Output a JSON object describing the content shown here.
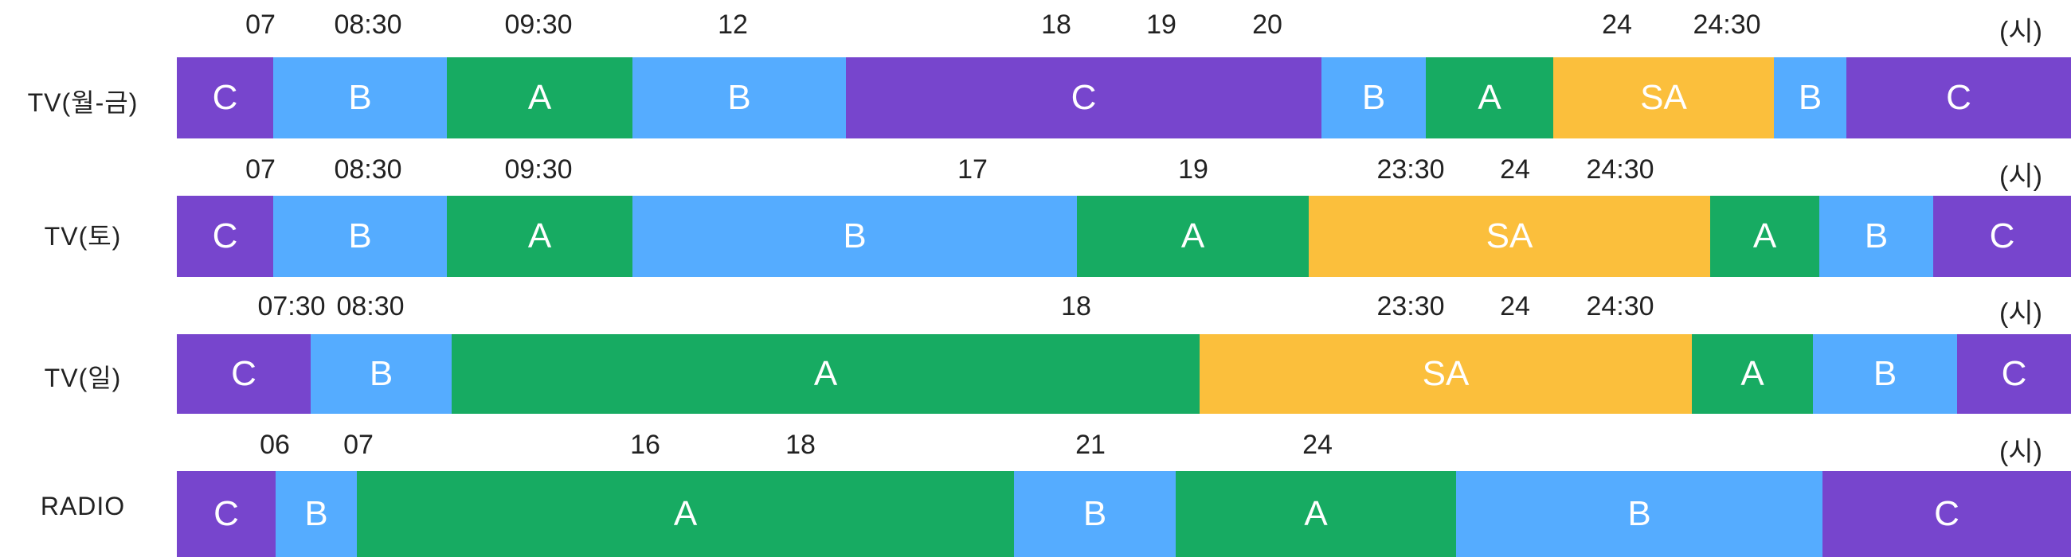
{
  "colors": {
    "C": "#7745cd",
    "B": "#55acff",
    "A": "#17ab62",
    "SA": "#fbbf3c"
  },
  "rows": [
    {
      "label": "TV(월-금)",
      "unit": "(시)",
      "ticks": [
        {
          "text": "07",
          "h": 7
        },
        {
          "text": "08:30",
          "h": 8.5
        },
        {
          "text": "09:30",
          "h": 9.5
        },
        {
          "text": "12",
          "h": 12
        },
        {
          "text": "18",
          "h": 18
        },
        {
          "text": "19",
          "h": 19
        },
        {
          "text": "20",
          "h": 20
        },
        {
          "text": "24",
          "h": 24
        },
        {
          "text": "24:30",
          "h": 24.5
        }
      ],
      "segments": [
        {
          "grade": "C",
          "start": 6,
          "end": 7
        },
        {
          "grade": "B",
          "start": 7,
          "end": 8.5
        },
        {
          "grade": "A",
          "start": 8.5,
          "end": 9.5
        },
        {
          "grade": "B",
          "start": 9.5,
          "end": 12
        },
        {
          "grade": "C",
          "start": 12,
          "end": 18
        },
        {
          "grade": "B",
          "start": 18,
          "end": 19
        },
        {
          "grade": "A",
          "start": 19,
          "end": 20
        },
        {
          "grade": "SA",
          "start": 20,
          "end": 24
        },
        {
          "grade": "B",
          "start": 24,
          "end": 24.5
        },
        {
          "grade": "C",
          "start": 24.5,
          "end": 26
        }
      ]
    },
    {
      "label": "TV(토)",
      "unit": "(시)",
      "ticks": [
        {
          "text": "07",
          "h": 7
        },
        {
          "text": "08:30",
          "h": 8.5
        },
        {
          "text": "09:30",
          "h": 9.5
        },
        {
          "text": "17",
          "h": 17
        },
        {
          "text": "19",
          "h": 19
        },
        {
          "text": "23:30",
          "h": 23.5
        },
        {
          "text": "24",
          "h": 24
        },
        {
          "text": "24:30",
          "h": 24.5
        }
      ],
      "segments": [
        {
          "grade": "C",
          "start": 6,
          "end": 7
        },
        {
          "grade": "B",
          "start": 7,
          "end": 8.5
        },
        {
          "grade": "A",
          "start": 8.5,
          "end": 9.5
        },
        {
          "grade": "B",
          "start": 9.5,
          "end": 17
        },
        {
          "grade": "A",
          "start": 17,
          "end": 19
        },
        {
          "grade": "SA",
          "start": 19,
          "end": 23.5
        },
        {
          "grade": "A",
          "start": 23.5,
          "end": 24
        },
        {
          "grade": "B",
          "start": 24,
          "end": 24.5
        },
        {
          "grade": "C",
          "start": 24.5,
          "end": 26
        }
      ]
    },
    {
      "label": "TV(일)",
      "unit": "(시)",
      "ticks": [
        {
          "text": "07:30",
          "h": 7.5
        },
        {
          "text": "08:30",
          "h": 8.5
        },
        {
          "text": "18",
          "h": 18
        },
        {
          "text": "23:30",
          "h": 23.5
        },
        {
          "text": "24",
          "h": 24
        },
        {
          "text": "24:30",
          "h": 24.5
        }
      ],
      "segments": [
        {
          "grade": "C",
          "start": 6,
          "end": 7.5
        },
        {
          "grade": "B",
          "start": 7.5,
          "end": 8.5
        },
        {
          "grade": "A",
          "start": 8.5,
          "end": 18
        },
        {
          "grade": "SA",
          "start": 18,
          "end": 23
        },
        {
          "grade": "A",
          "start": 23,
          "end": 23.5
        },
        {
          "grade": "B",
          "start": 23.5,
          "end": 24.5
        },
        {
          "grade": "C",
          "start": 24.5,
          "end": 26
        }
      ]
    },
    {
      "label": "RADIO",
      "unit": "(시)",
      "ticks": [
        {
          "text": "06",
          "h": 6
        },
        {
          "text": "07",
          "h": 7
        },
        {
          "text": "16",
          "h": 16
        },
        {
          "text": "18",
          "h": 18
        },
        {
          "text": "21",
          "h": 21
        },
        {
          "text": "24",
          "h": 24
        }
      ],
      "segments": [
        {
          "grade": "C",
          "start": 5,
          "end": 6
        },
        {
          "grade": "B",
          "start": 6,
          "end": 7
        },
        {
          "grade": "A",
          "start": 7,
          "end": 16
        },
        {
          "grade": "B",
          "start": 16,
          "end": 18
        },
        {
          "grade": "A",
          "start": 18,
          "end": 21
        },
        {
          "grade": "B",
          "start": 21,
          "end": 24
        },
        {
          "grade": "C",
          "start": 24,
          "end": 26
        }
      ]
    }
  ]
}
